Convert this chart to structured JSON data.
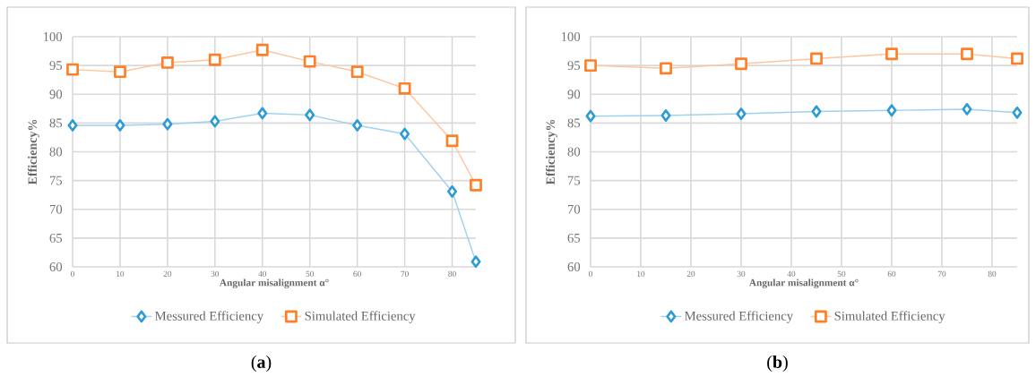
{
  "chart_data": [
    {
      "type": "line",
      "xlabel": "Angular misalignment α°",
      "ylabel": "Efficiency%",
      "x": [
        0,
        10,
        20,
        30,
        40,
        50,
        60,
        70,
        80,
        85
      ],
      "xlim": [
        0,
        85
      ],
      "xticks": [
        0,
        10,
        20,
        30,
        40,
        50,
        60,
        70,
        80
      ],
      "ylim": [
        60,
        100
      ],
      "yticks": [
        60,
        65,
        70,
        75,
        80,
        85,
        90,
        95,
        100
      ],
      "grid": true,
      "legend": "bottom",
      "line_style": "solid",
      "annotations": [
        "(**a**)"
      ],
      "series": [
        {
          "name": "Messured Efficiency",
          "color": "#2e9bd6",
          "marker": "diamond",
          "values": [
            84.6,
            84.6,
            84.8,
            85.3,
            86.7,
            86.4,
            84.6,
            83.1,
            73.1,
            60.9
          ]
        },
        {
          "name": "Simulated Efficiency",
          "color": "#ff7f27",
          "marker": "square",
          "values": [
            94.3,
            93.9,
            95.5,
            96.0,
            97.7,
            95.7,
            93.9,
            91.0,
            81.9,
            74.2
          ]
        }
      ]
    },
    {
      "type": "line",
      "xlabel": "Angular misalignment α°",
      "ylabel": "Efficiency%",
      "x": [
        0,
        15,
        30,
        45,
        60,
        75,
        85
      ],
      "xlim": [
        0,
        85
      ],
      "xticks": [
        0,
        10,
        20,
        30,
        40,
        50,
        60,
        70,
        80
      ],
      "ylim": [
        60,
        100
      ],
      "yticks": [
        60,
        65,
        70,
        75,
        80,
        85,
        90,
        95,
        100
      ],
      "grid": true,
      "legend": "bottom",
      "line_style": "solid",
      "annotations": [
        "(**b**)"
      ],
      "series": [
        {
          "name": "Messured Efficiency",
          "color": "#2e9bd6",
          "marker": "diamond",
          "values": [
            86.2,
            86.3,
            86.6,
            87.0,
            87.2,
            87.4,
            86.8
          ]
        },
        {
          "name": "Simulated Efficiency",
          "color": "#ff7f27",
          "marker": "square",
          "values": [
            95.0,
            94.5,
            95.3,
            96.2,
            97.0,
            97.0,
            96.2
          ]
        }
      ]
    }
  ]
}
